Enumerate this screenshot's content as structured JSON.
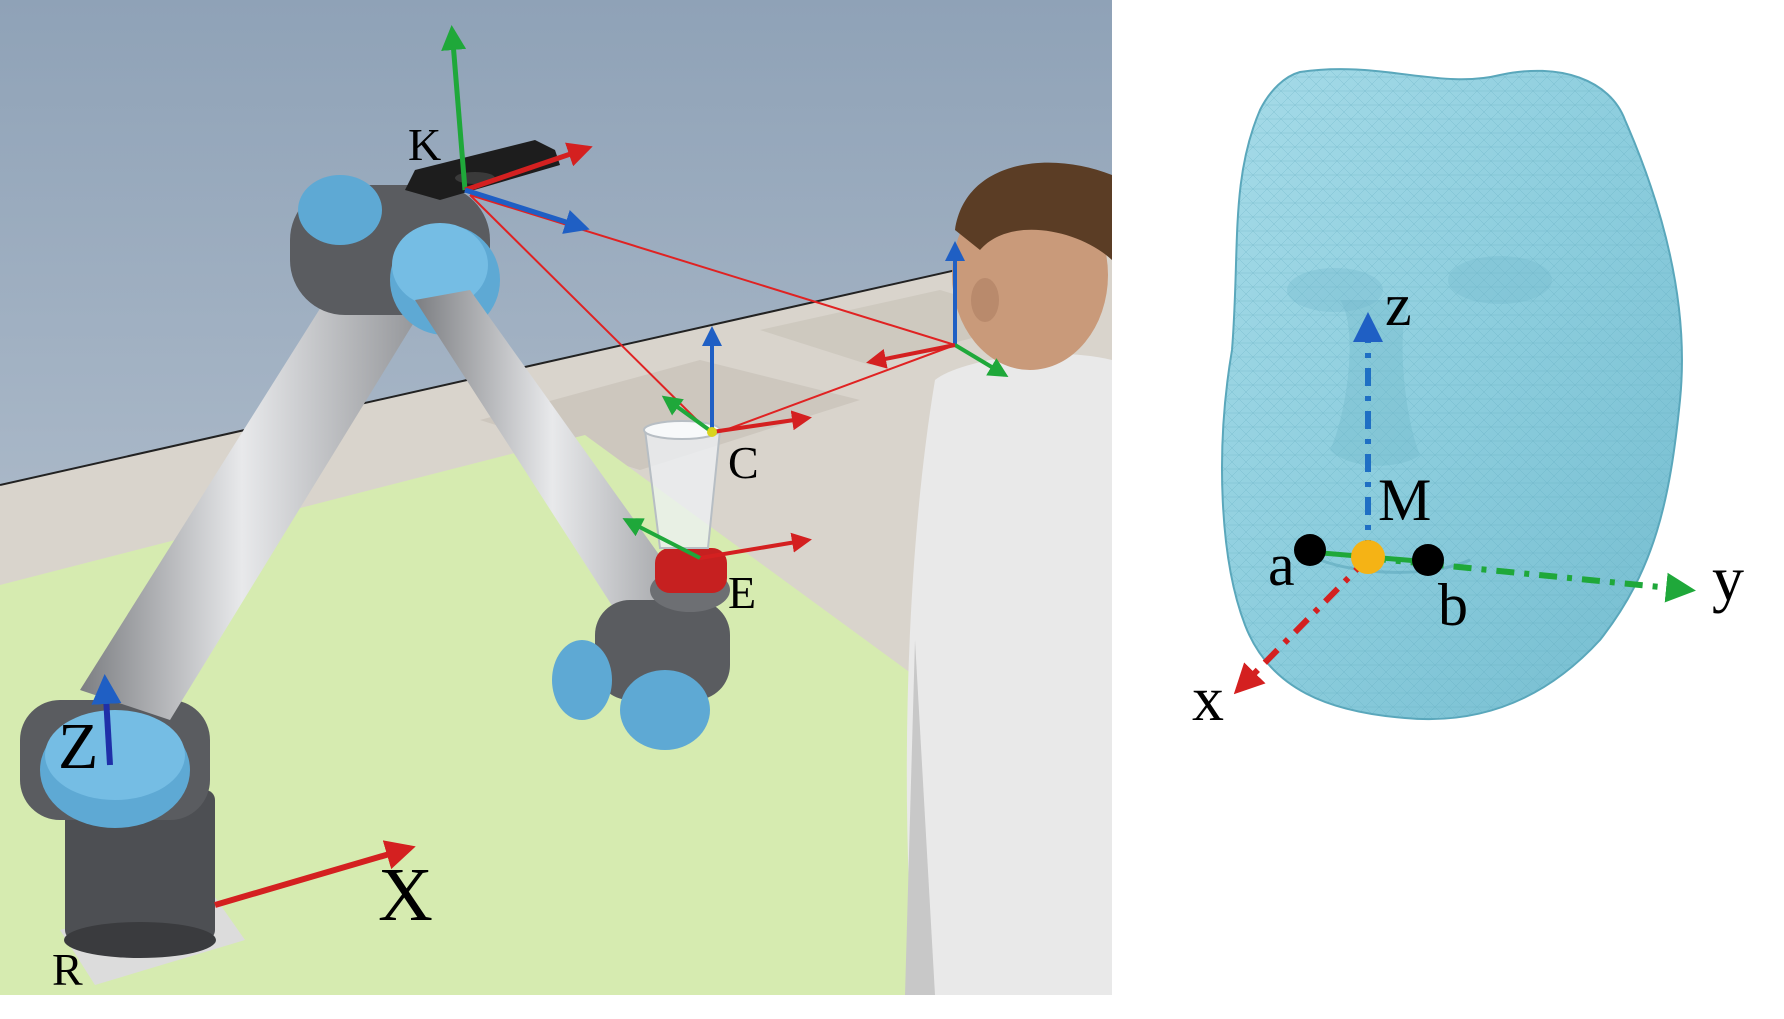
{
  "left_panel": {
    "frame_labels": {
      "keypoint_camera": "K",
      "cup": "C",
      "end_effector": "E",
      "robot_base": "R",
      "base_z_axis": "Z",
      "base_x_axis": "X"
    }
  },
  "right_panel": {
    "labels": {
      "mouth_center": "M",
      "left_corner": "a",
      "right_corner": "b",
      "x_axis": "x",
      "y_axis": "y",
      "z_axis": "z"
    }
  },
  "colors": {
    "x_axis": "#d42020",
    "y_axis": "#1fa83a",
    "z_axis": "#1f5fc4",
    "sight_lines": "#e02222",
    "face_mesh": "#8fd0df",
    "table": "#d6ebb0",
    "sky": "#a8b6c6",
    "mouth_point": "#f5b315"
  }
}
